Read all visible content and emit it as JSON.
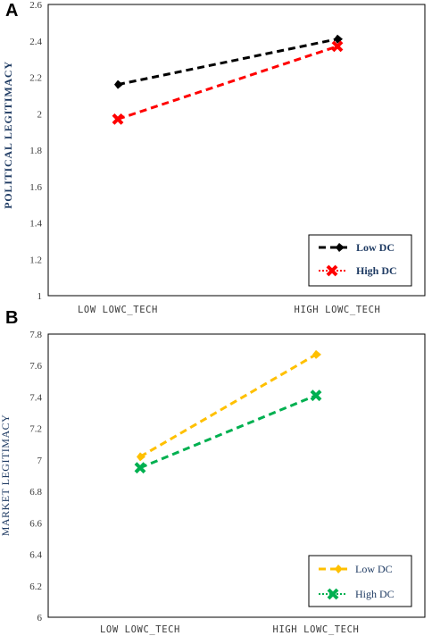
{
  "chart_data": [
    {
      "panel": "A",
      "type": "line",
      "ylabel": "POLITICAL LEGITIMACY",
      "categories": [
        "LOW LOWC_TECH",
        "HIGH LOWC_TECH"
      ],
      "ylim": [
        1,
        2.6
      ],
      "yticks": [
        "1",
        "1.2",
        "1.4",
        "1.6",
        "1.8",
        "2",
        "2.2",
        "2.4",
        "2.6"
      ],
      "legend_position": "bottom-right",
      "series": [
        {
          "name": "Low DC",
          "values": [
            2.16,
            2.41
          ],
          "color": "#000000"
        },
        {
          "name": "High DC",
          "values": [
            1.97,
            2.37
          ],
          "color": "#ff0000"
        }
      ]
    },
    {
      "panel": "B",
      "type": "line",
      "ylabel": "MARKET LEGITIMACY",
      "categories": [
        "LOW LOWC_TECH",
        "HIGH LOWC_TECH"
      ],
      "ylim": [
        6,
        7.8
      ],
      "yticks": [
        "6",
        "6.2",
        "6.4",
        "6.6",
        "6.8",
        "7",
        "7.2",
        "7.4",
        "7.6",
        "7.8"
      ],
      "legend_position": "bottom-right",
      "series": [
        {
          "name": "Low DC",
          "values": [
            7.02,
            7.67
          ],
          "color": "#ffc000"
        },
        {
          "name": "High DC",
          "values": [
            6.95,
            7.41
          ],
          "color": "#00b050"
        }
      ]
    }
  ]
}
